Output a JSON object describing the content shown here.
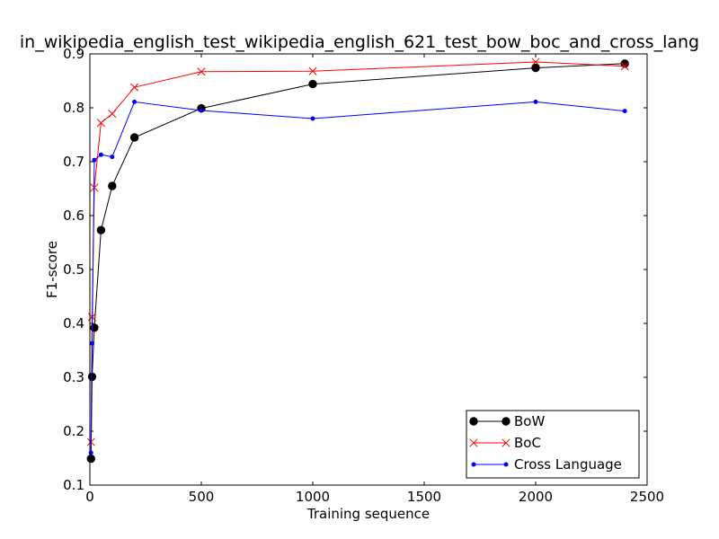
{
  "chart_data": {
    "type": "line",
    "title": "in_wikipedia_english_test_wikipedia_english_621_test_bow_boc_and_cross_lang",
    "xlabel": "Training sequence",
    "ylabel": "F1-score",
    "xlim": [
      0,
      2500
    ],
    "ylim": [
      0.1,
      0.9
    ],
    "xticks": [
      "0",
      "500",
      "1000",
      "1500",
      "2000",
      "2500"
    ],
    "yticks": [
      "0.1",
      "0.2",
      "0.3",
      "0.4",
      "0.5",
      "0.6",
      "0.7",
      "0.8",
      "0.9"
    ],
    "grid": false,
    "legend_position": "bottom-right",
    "series": [
      {
        "name": "BoW",
        "color": "#000000",
        "marker": "circle",
        "x": [
          5,
          10,
          20,
          50,
          100,
          200,
          500,
          1000,
          2000,
          2400
        ],
        "y": [
          0.149,
          0.301,
          0.392,
          0.573,
          0.655,
          0.745,
          0.799,
          0.844,
          0.874,
          0.882
        ]
      },
      {
        "name": "BoC",
        "color": "#ff0000",
        "marker": "x",
        "x": [
          5,
          10,
          20,
          50,
          100,
          200,
          500,
          1000,
          2000,
          2400
        ],
        "y": [
          0.18,
          0.412,
          0.652,
          0.772,
          0.789,
          0.838,
          0.867,
          0.868,
          0.885,
          0.877
        ]
      },
      {
        "name": "Cross Language",
        "color": "#0000ff",
        "marker": "dot",
        "x": [
          5,
          10,
          20,
          50,
          100,
          200,
          500,
          1000,
          2000,
          2400
        ],
        "y": [
          0.16,
          0.363,
          0.703,
          0.713,
          0.709,
          0.811,
          0.795,
          0.78,
          0.811,
          0.794
        ]
      }
    ]
  }
}
